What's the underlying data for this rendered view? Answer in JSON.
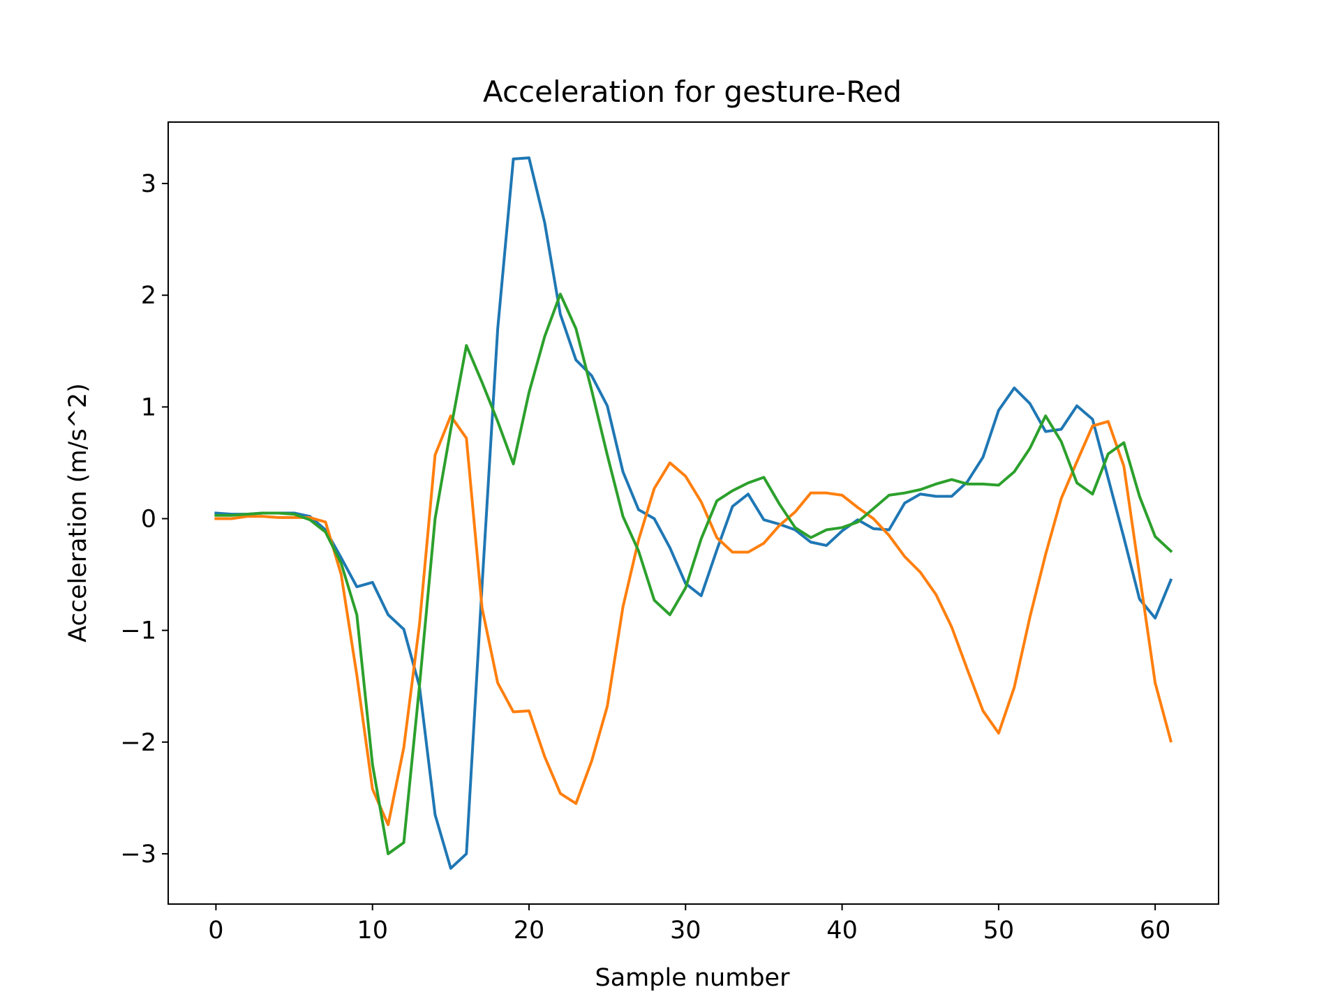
{
  "chart_data": {
    "type": "line",
    "title": "Acceleration for gesture-Red",
    "xlabel": "Sample number",
    "ylabel": "Acceleration (m/s^2)",
    "xlim": [
      -3.05,
      64.05
    ],
    "ylim": [
      -3.45,
      3.55
    ],
    "xticks": [
      0,
      10,
      20,
      30,
      40,
      50,
      60
    ],
    "xtick_labels": [
      "0",
      "10",
      "20",
      "30",
      "40",
      "50",
      "60"
    ],
    "yticks": [
      -3,
      -2,
      -1,
      0,
      1,
      2,
      3
    ],
    "ytick_labels": [
      "−3",
      "−2",
      "−1",
      "0",
      "1",
      "2",
      "3"
    ],
    "grid": false,
    "legend": "none",
    "x": [
      0,
      1,
      2,
      3,
      4,
      5,
      6,
      7,
      8,
      9,
      10,
      11,
      12,
      13,
      14,
      15,
      16,
      17,
      18,
      19,
      20,
      21,
      22,
      23,
      24,
      25,
      26,
      27,
      28,
      29,
      30,
      31,
      32,
      33,
      34,
      35,
      36,
      37,
      38,
      39,
      40,
      41,
      42,
      43,
      44,
      45,
      46,
      47,
      48,
      49,
      50,
      51,
      52,
      53,
      54,
      55,
      56,
      57,
      58,
      59,
      60,
      61
    ],
    "series": [
      {
        "color": "#1f77b4",
        "values": [
          0.05,
          0.04,
          0.04,
          0.05,
          0.05,
          0.05,
          0.02,
          -0.1,
          -0.35,
          -0.61,
          -0.57,
          -0.86,
          -0.99,
          -1.5,
          -2.65,
          -3.13,
          -3.0,
          -0.6,
          1.7,
          3.22,
          3.23,
          2.65,
          1.83,
          1.42,
          1.28,
          1.01,
          0.42,
          0.08,
          0.0,
          -0.26,
          -0.58,
          -0.69,
          -0.28,
          0.11,
          0.22,
          -0.01,
          -0.05,
          -0.1,
          -0.21,
          -0.24,
          -0.11,
          -0.01,
          -0.09,
          -0.1,
          0.14,
          0.22,
          0.2,
          0.2,
          0.33,
          0.55,
          0.97,
          1.17,
          1.03,
          0.78,
          0.8,
          1.01,
          0.89,
          0.36,
          -0.17,
          -0.72,
          -0.89,
          -0.55
        ]
      },
      {
        "color": "#ff7f0e",
        "values": [
          0.0,
          0.0,
          0.02,
          0.02,
          0.01,
          0.01,
          0.01,
          -0.03,
          -0.5,
          -1.4,
          -2.42,
          -2.74,
          -2.05,
          -0.95,
          0.57,
          0.92,
          0.72,
          -0.8,
          -1.47,
          -1.73,
          -1.72,
          -2.13,
          -2.46,
          -2.55,
          -2.17,
          -1.68,
          -0.79,
          -0.19,
          0.27,
          0.5,
          0.38,
          0.15,
          -0.17,
          -0.3,
          -0.3,
          -0.22,
          -0.06,
          0.06,
          0.23,
          0.23,
          0.21,
          0.1,
          0.0,
          -0.15,
          -0.34,
          -0.48,
          -0.68,
          -0.97,
          -1.35,
          -1.72,
          -1.92,
          -1.51,
          -0.88,
          -0.32,
          0.18,
          0.51,
          0.83,
          0.87,
          0.47,
          -0.5,
          -1.47,
          -1.99
        ]
      },
      {
        "color": "#2ca02c",
        "values": [
          0.03,
          0.03,
          0.04,
          0.05,
          0.05,
          0.04,
          -0.01,
          -0.12,
          -0.4,
          -0.86,
          -2.2,
          -3.0,
          -2.9,
          -1.5,
          0.0,
          0.8,
          1.55,
          1.22,
          0.87,
          0.49,
          1.13,
          1.63,
          2.01,
          1.7,
          1.15,
          0.57,
          0.02,
          -0.29,
          -0.73,
          -0.86,
          -0.62,
          -0.18,
          0.16,
          0.25,
          0.32,
          0.37,
          0.13,
          -0.08,
          -0.17,
          -0.1,
          -0.08,
          -0.03,
          0.09,
          0.21,
          0.23,
          0.26,
          0.31,
          0.35,
          0.31,
          0.31,
          0.3,
          0.42,
          0.63,
          0.92,
          0.69,
          0.32,
          0.22,
          0.58,
          0.68,
          0.2,
          -0.16,
          -0.29
        ]
      }
    ]
  }
}
